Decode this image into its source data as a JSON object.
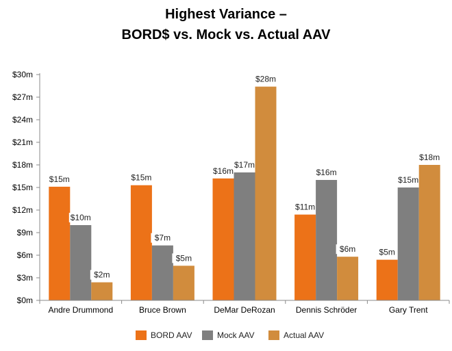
{
  "chart_data": {
    "type": "bar",
    "title_line1": "Highest Variance –",
    "title_line2": "BORD$ vs. Mock vs. Actual AAV",
    "xlabel": "",
    "ylabel": "",
    "ylim": [
      0,
      30
    ],
    "yticks": [
      "$0m",
      "$3m",
      "$6m",
      "$9m",
      "$12m",
      "$15m",
      "$18m",
      "$21m",
      "$24m",
      "$27m",
      "$30m"
    ],
    "categories": [
      "Andre Drummond",
      "Bruce Brown",
      "DeMar DeRozan",
      "Dennis Schröder",
      "Gary Trent"
    ],
    "series": [
      {
        "name": "BORD AAV",
        "color": "#ec7218",
        "values": [
          15.1,
          15.3,
          16.2,
          11.4,
          5.4
        ],
        "labels": [
          "$15m",
          "$15m",
          "$16m",
          "$11m",
          "$5m"
        ]
      },
      {
        "name": "Mock AAV",
        "color": "#7f7f7f",
        "values": [
          10.0,
          7.3,
          17.0,
          16.0,
          15.0
        ],
        "labels": [
          "$10m",
          "$7m",
          "$17m",
          "$16m",
          "$15m"
        ]
      },
      {
        "name": "Actual AAV",
        "color": "#d18c3d",
        "values": [
          2.4,
          4.6,
          28.4,
          5.8,
          18.0
        ],
        "labels": [
          "$2m",
          "$5m",
          "$28m",
          "$6m",
          "$18m"
        ]
      }
    ],
    "grid": false,
    "legend_position": "bottom"
  }
}
